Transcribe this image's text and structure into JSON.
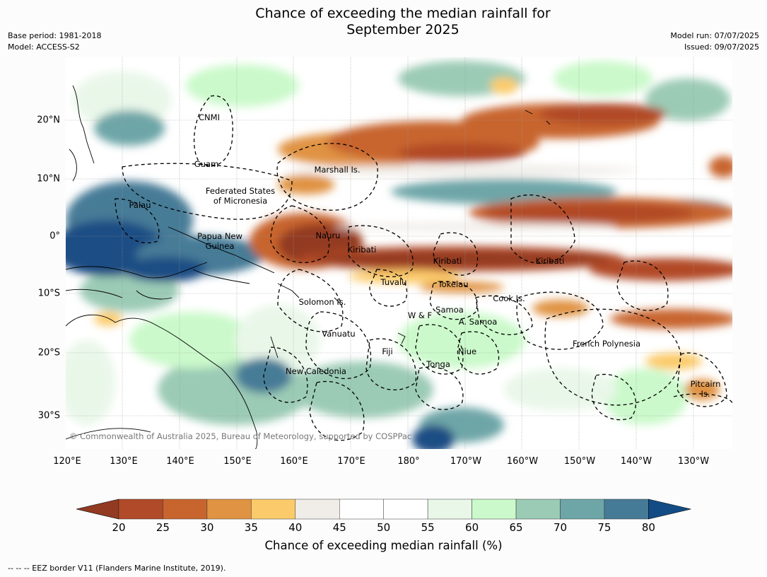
{
  "title": "Chance of exceeding the median rainfall for\nSeptember 2025",
  "meta_left": {
    "base_period": "Base period: 1981-2018",
    "model": "Model: ACCESS-S2"
  },
  "meta_right": {
    "model_run": "Model run: 07/07/2025",
    "issued": "Issued: 09/07/2025"
  },
  "lon_ticks": [
    "120°E",
    "130°E",
    "140°E",
    "150°E",
    "160°E",
    "170°E",
    "180°",
    "170°W",
    "160°W",
    "150°W",
    "140°W",
    "130°W"
  ],
  "lat_ticks": [
    "20°N",
    "10°N",
    "0°",
    "10°S",
    "20°S",
    "30°S"
  ],
  "places": [
    "CNMI",
    "Guam",
    "Marshall Is.",
    "Federated States\nof Micronesia",
    "Palau",
    "Nauru",
    "Papua New\nGuinea",
    "Kiribati",
    "Kiribati",
    "Kiribati",
    "Tuvalu",
    "Tokelau",
    "Cook Is.",
    "Solomon Is.",
    "Samoa",
    "W & F",
    "A. Samoa",
    "Vanuatu",
    "Fiji",
    "Niue",
    "Tonga",
    "French Polynesia",
    "New Caledonia",
    "Pitcairn\nIs."
  ],
  "copyright": "© Commonwealth of Australia 2025, Bureau of Meteorology, supported by COSPPac",
  "colorbar": {
    "ticks": [
      "20",
      "25",
      "30",
      "35",
      "40",
      "45",
      "50",
      "55",
      "60",
      "65",
      "70",
      "75",
      "80"
    ],
    "colors": [
      "#b14a28",
      "#c8652f",
      "#e09342",
      "#fbcb6b",
      "#f0ede8",
      "#ffffff",
      "#ffffff",
      "#e9f7e9",
      "#cbf9cb",
      "#9bcbb5",
      "#6ea6a8",
      "#467b97",
      "#1c4e84"
    ],
    "under_color": "#933a22",
    "over_color": "#134c84",
    "label": "Chance of exceeding median rainfall (%)"
  },
  "footnote": "--  --  -- EEZ border V11 (Flanders Marine Institute, 2019)."
}
